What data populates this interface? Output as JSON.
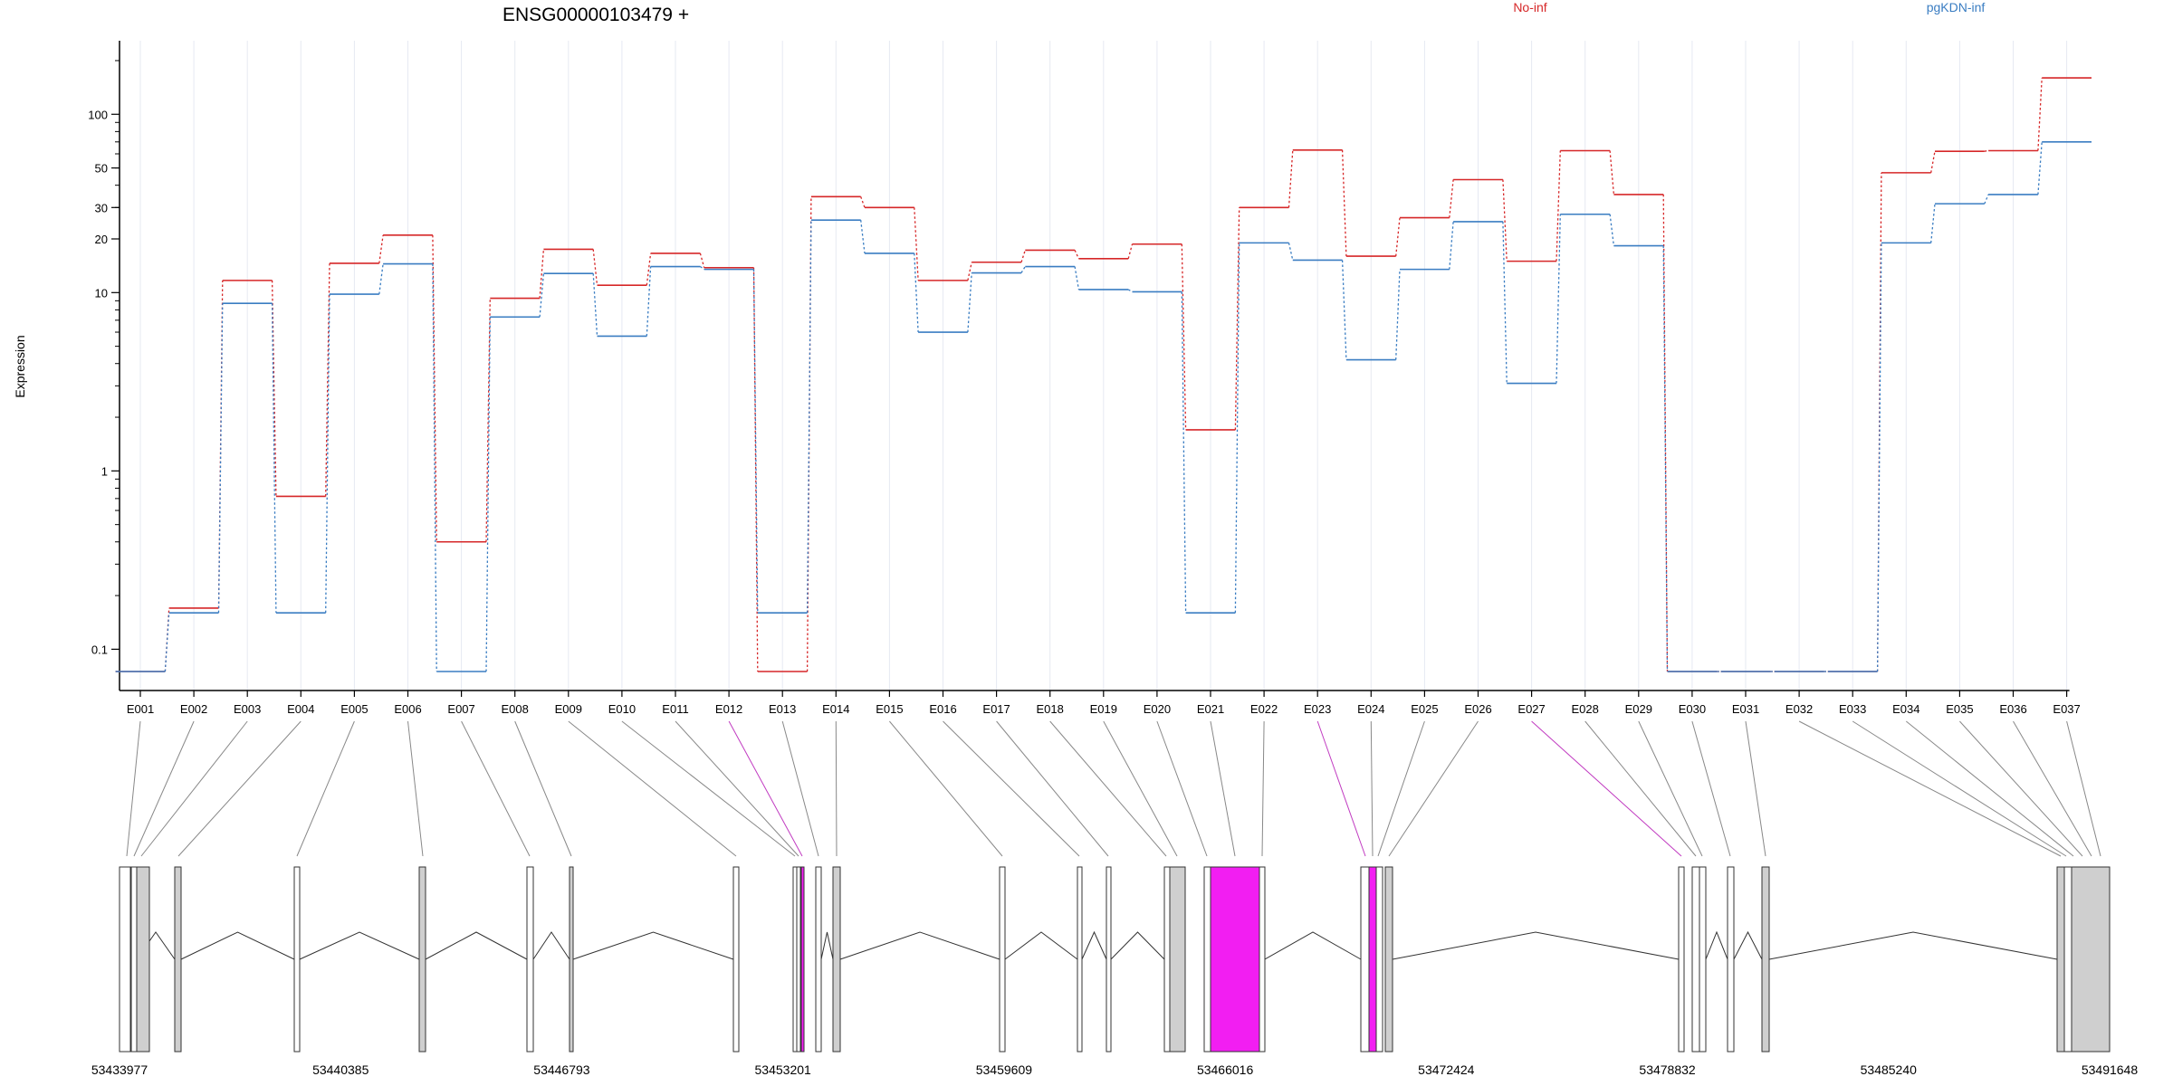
{
  "chart_data": {
    "type": "line",
    "title": "ENSG00000103479 +",
    "ylabel": "Expression",
    "xlabel": "",
    "yscale": "log",
    "ylim": [
      0.075,
      230
    ],
    "grid": true,
    "legend_position": "top",
    "y_ticks": [
      0.1,
      1,
      10,
      20,
      30,
      50,
      100
    ],
    "y_tick_labels": [
      "0.1",
      "1",
      "10",
      "20",
      "30",
      "50",
      "100"
    ],
    "categories": [
      "E001",
      "E002",
      "E003",
      "E004",
      "E005",
      "E006",
      "E007",
      "E008",
      "E009",
      "E010",
      "E011",
      "E012",
      "E013",
      "E014",
      "E015",
      "E016",
      "E017",
      "E018",
      "E019",
      "E020",
      "E021",
      "E022",
      "E023",
      "E024",
      "E025",
      "E026",
      "E027",
      "E028",
      "E029",
      "E030",
      "E031",
      "E032",
      "E033",
      "E034",
      "E035",
      "E036",
      "E037"
    ],
    "series": [
      {
        "name": "No-inf",
        "color": "#d62728",
        "values": [
          0.075,
          0.17,
          11.7,
          0.72,
          14.6,
          21,
          0.4,
          9.3,
          17.5,
          11,
          16.6,
          13.8,
          0.075,
          34.5,
          30,
          11.7,
          14.8,
          17.3,
          15.5,
          18.7,
          1.7,
          30,
          63,
          16,
          26.3,
          43,
          15,
          62.5,
          35.5,
          0.075,
          0.075,
          0.075,
          0.075,
          47,
          62,
          62.5,
          160
        ]
      },
      {
        "name": "pgKDN-inf",
        "color": "#3a7dc2",
        "values": [
          0.075,
          0.16,
          8.7,
          0.16,
          9.8,
          14.5,
          0.075,
          7.3,
          12.8,
          5.7,
          14,
          13.5,
          0.16,
          25.5,
          16.6,
          6,
          12.9,
          14,
          10.4,
          10.1,
          0.16,
          19,
          15.2,
          4.2,
          13.5,
          25,
          3.1,
          27.5,
          18.3,
          0.075,
          0.075,
          0.075,
          0.075,
          19,
          31.5,
          35.5,
          70
        ]
      }
    ],
    "gene_model": {
      "coordinate_ticks": [
        "53433977",
        "53440385",
        "53446793",
        "53453201",
        "53459609",
        "53466016",
        "53472424",
        "53478832",
        "53485240",
        "53491648"
      ],
      "coordinate_range": [
        53433977,
        53491648
      ],
      "exon_colors": {
        "normal": "#cfcfcf",
        "highlighted": "#f21ef2"
      },
      "highlighted_exons": [
        "E012",
        "E023",
        "E027"
      ],
      "exon_genomic_positions": [
        53434100,
        53434420,
        53434700,
        53435600,
        53438900,
        53442400,
        53445500,
        53446700,
        53451450,
        53453090,
        53453310,
        53453480,
        53453580,
        53454060,
        53461500,
        53463750,
        53464520,
        53465260,
        53465700,
        53466220,
        53467500,
        53468000,
        53470260,
        53470650,
        53470780,
        53471010,
        53471070,
        53471330,
        53478500,
        53479050,
        53479780,
        53480600,
        53481220,
        53492400,
        53492600,
        53492850,
        53493200
      ]
    }
  }
}
